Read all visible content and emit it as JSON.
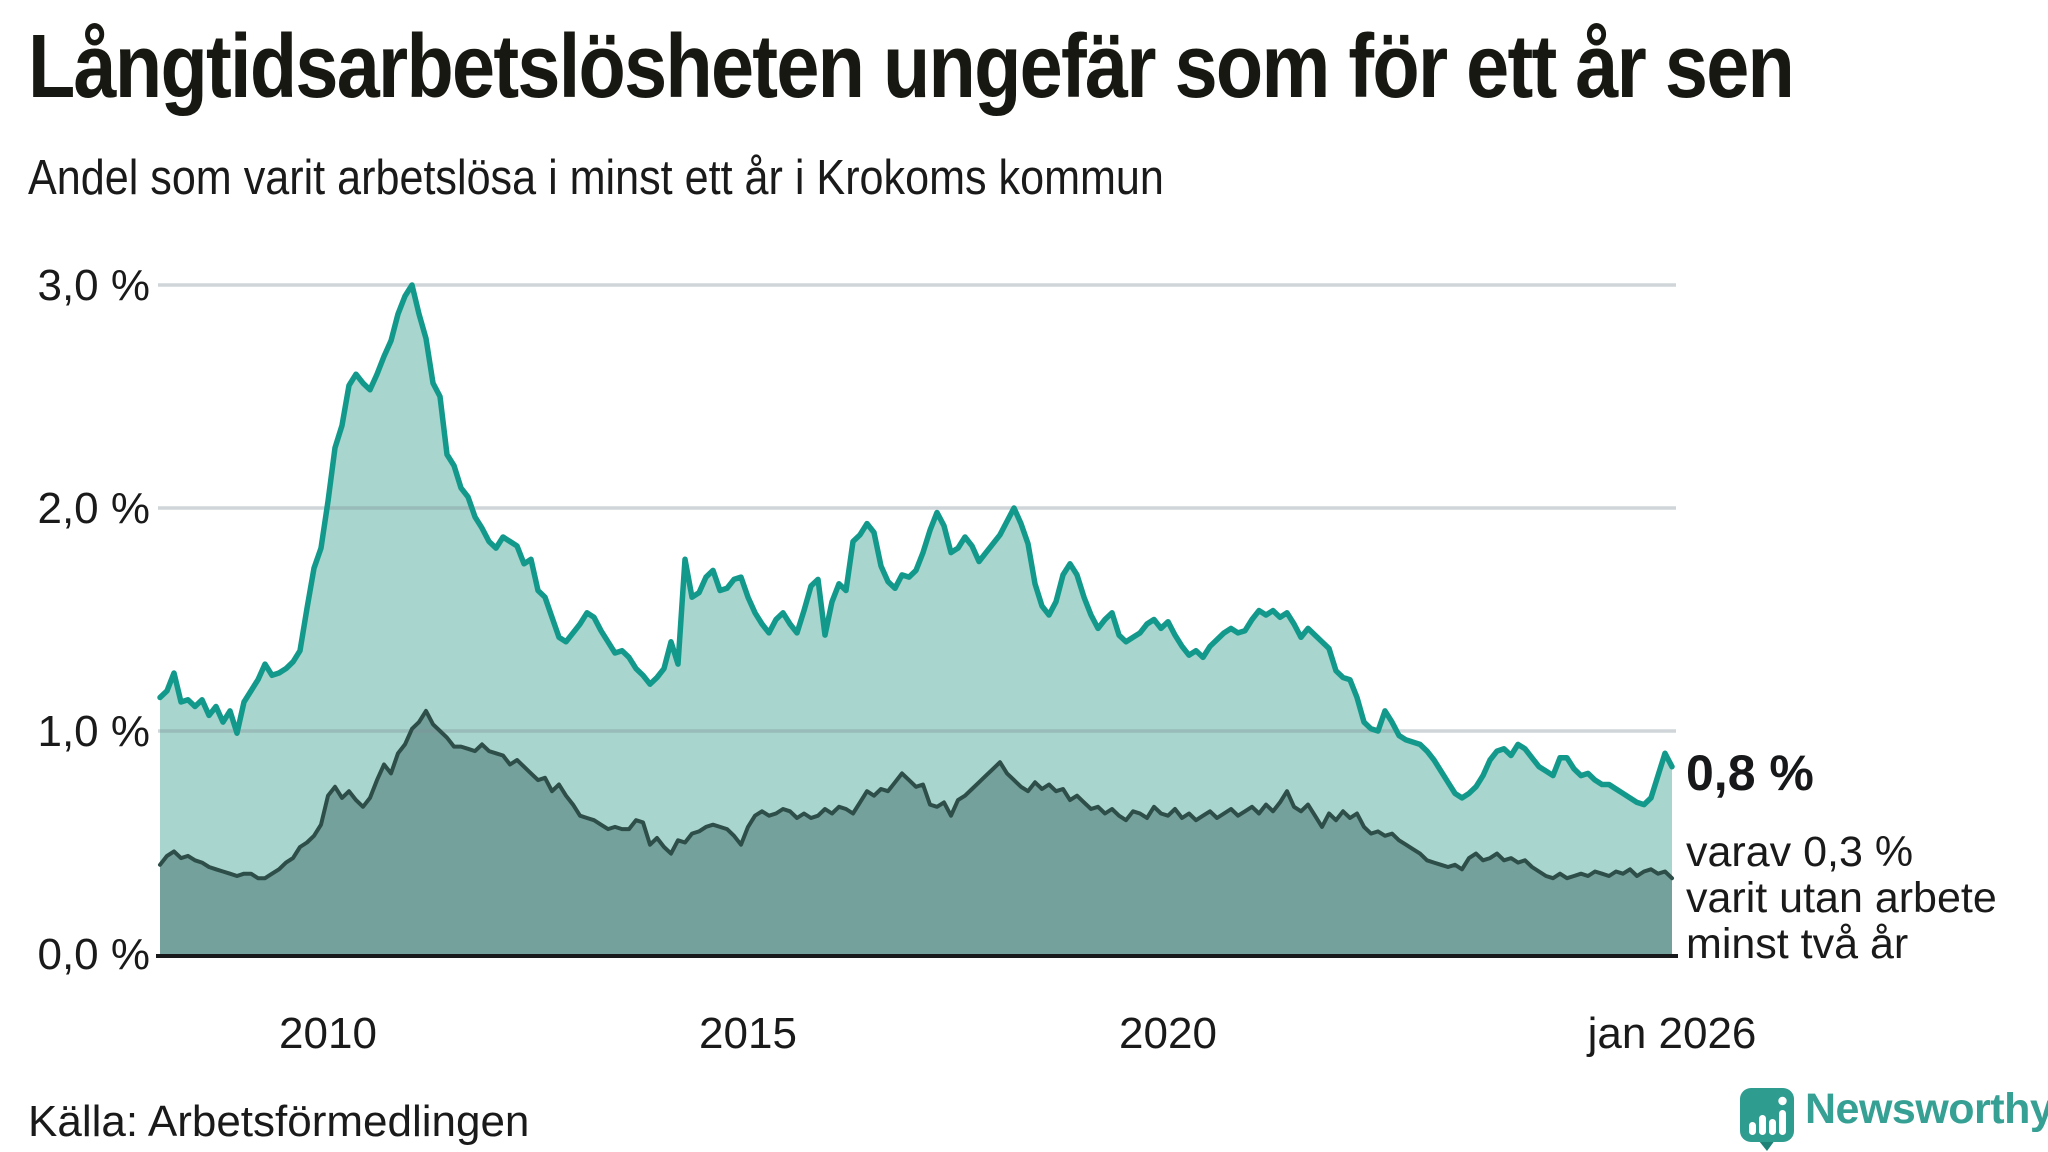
{
  "header": {
    "title": "Långtidsarbetslösheten ungefär som för ett år sen",
    "subtitle": "Andel som varit arbetslösa i minst ett år i Krokoms kommun"
  },
  "chart_data": {
    "type": "area",
    "title": "Långtidsarbetslösheten ungefär som för ett år sen",
    "subtitle": "Andel som varit arbetslösa i minst ett år i Krokoms kommun",
    "x_start_year": 2008,
    "x_end_year": 2026,
    "points_per_year": 12,
    "ylim": [
      0,
      3.2
    ],
    "grid": "horizontal",
    "y_axis": {
      "ticks": [
        {
          "label": "0,0 %",
          "value": 0
        },
        {
          "label": "1,0 %",
          "value": 1
        },
        {
          "label": "2,0 %",
          "value": 2
        },
        {
          "label": "3,0 %",
          "value": 3
        }
      ]
    },
    "x_axis": {
      "ticks": [
        {
          "label": "2010",
          "year": 2010
        },
        {
          "label": "2015",
          "year": 2015
        },
        {
          "label": "2020",
          "year": 2020
        },
        {
          "label": "jan 2026",
          "year": 2026
        }
      ]
    },
    "series": [
      {
        "id": "minst-ett-ar",
        "label": "arbetslösa i minst ett år",
        "line_color": "#13998b",
        "fill_color": "#a8d5cd",
        "line_width": 5.5,
        "values": [
          1.15,
          1.18,
          1.26,
          1.13,
          1.14,
          1.11,
          1.14,
          1.07,
          1.11,
          1.04,
          1.09,
          0.99,
          1.13,
          1.18,
          1.23,
          1.3,
          1.25,
          1.26,
          1.28,
          1.31,
          1.36,
          1.55,
          1.73,
          1.82,
          2.03,
          2.27,
          2.37,
          2.55,
          2.6,
          2.56,
          2.53,
          2.6,
          2.68,
          2.75,
          2.87,
          2.95,
          3.0,
          2.87,
          2.76,
          2.56,
          2.5,
          2.24,
          2.19,
          2.09,
          2.05,
          1.96,
          1.91,
          1.85,
          1.82,
          1.87,
          1.85,
          1.83,
          1.75,
          1.77,
          1.63,
          1.6,
          1.51,
          1.42,
          1.4,
          1.44,
          1.48,
          1.53,
          1.51,
          1.45,
          1.4,
          1.35,
          1.36,
          1.33,
          1.28,
          1.25,
          1.21,
          1.24,
          1.28,
          1.4,
          1.3,
          1.77,
          1.6,
          1.62,
          1.69,
          1.72,
          1.63,
          1.64,
          1.68,
          1.69,
          1.6,
          1.53,
          1.48,
          1.44,
          1.5,
          1.53,
          1.48,
          1.44,
          1.54,
          1.65,
          1.68,
          1.43,
          1.58,
          1.66,
          1.63,
          1.85,
          1.88,
          1.93,
          1.89,
          1.74,
          1.67,
          1.64,
          1.7,
          1.69,
          1.72,
          1.8,
          1.9,
          1.98,
          1.92,
          1.8,
          1.82,
          1.87,
          1.83,
          1.76,
          1.8,
          1.84,
          1.88,
          1.94,
          2.0,
          1.93,
          1.84,
          1.66,
          1.56,
          1.52,
          1.58,
          1.7,
          1.75,
          1.7,
          1.6,
          1.52,
          1.46,
          1.5,
          1.53,
          1.43,
          1.4,
          1.42,
          1.44,
          1.48,
          1.5,
          1.46,
          1.49,
          1.43,
          1.38,
          1.34,
          1.36,
          1.33,
          1.38,
          1.41,
          1.44,
          1.46,
          1.44,
          1.45,
          1.5,
          1.54,
          1.52,
          1.54,
          1.51,
          1.53,
          1.48,
          1.42,
          1.46,
          1.43,
          1.4,
          1.37,
          1.27,
          1.24,
          1.23,
          1.15,
          1.04,
          1.01,
          1.0,
          1.09,
          1.04,
          0.98,
          0.96,
          0.95,
          0.94,
          0.91,
          0.87,
          0.82,
          0.77,
          0.72,
          0.7,
          0.72,
          0.75,
          0.8,
          0.87,
          0.91,
          0.92,
          0.89,
          0.94,
          0.92,
          0.88,
          0.84,
          0.82,
          0.8,
          0.88,
          0.88,
          0.83,
          0.8,
          0.81,
          0.78,
          0.76,
          0.76,
          0.74,
          0.72,
          0.7,
          0.68,
          0.67,
          0.7,
          0.8,
          0.9,
          0.84
        ]
      },
      {
        "id": "minst-tva-ar",
        "label": "varit utan arbete minst två år",
        "line_color": "#2e4e4a",
        "fill_color": "#74a19b",
        "line_width": 4,
        "values": [
          0.4,
          0.44,
          0.46,
          0.43,
          0.44,
          0.42,
          0.41,
          0.39,
          0.38,
          0.37,
          0.36,
          0.35,
          0.36,
          0.36,
          0.34,
          0.34,
          0.36,
          0.38,
          0.41,
          0.43,
          0.48,
          0.5,
          0.53,
          0.58,
          0.71,
          0.75,
          0.7,
          0.73,
          0.69,
          0.66,
          0.7,
          0.78,
          0.85,
          0.81,
          0.9,
          0.94,
          1.01,
          1.04,
          1.09,
          1.03,
          1.0,
          0.97,
          0.93,
          0.93,
          0.92,
          0.91,
          0.94,
          0.91,
          0.9,
          0.89,
          0.85,
          0.87,
          0.84,
          0.81,
          0.78,
          0.79,
          0.73,
          0.76,
          0.71,
          0.67,
          0.62,
          0.61,
          0.6,
          0.58,
          0.56,
          0.57,
          0.56,
          0.56,
          0.6,
          0.59,
          0.49,
          0.52,
          0.48,
          0.45,
          0.51,
          0.5,
          0.54,
          0.55,
          0.57,
          0.58,
          0.57,
          0.56,
          0.53,
          0.49,
          0.57,
          0.62,
          0.64,
          0.62,
          0.63,
          0.65,
          0.64,
          0.61,
          0.63,
          0.61,
          0.62,
          0.65,
          0.63,
          0.66,
          0.65,
          0.63,
          0.68,
          0.73,
          0.71,
          0.74,
          0.73,
          0.77,
          0.81,
          0.78,
          0.75,
          0.76,
          0.67,
          0.66,
          0.68,
          0.62,
          0.69,
          0.71,
          0.74,
          0.77,
          0.8,
          0.83,
          0.86,
          0.81,
          0.78,
          0.75,
          0.73,
          0.77,
          0.74,
          0.76,
          0.73,
          0.74,
          0.69,
          0.71,
          0.68,
          0.65,
          0.66,
          0.63,
          0.65,
          0.62,
          0.6,
          0.64,
          0.63,
          0.61,
          0.66,
          0.63,
          0.62,
          0.65,
          0.61,
          0.63,
          0.6,
          0.62,
          0.64,
          0.61,
          0.63,
          0.65,
          0.62,
          0.64,
          0.66,
          0.63,
          0.67,
          0.64,
          0.68,
          0.73,
          0.66,
          0.64,
          0.67,
          0.62,
          0.57,
          0.63,
          0.6,
          0.64,
          0.61,
          0.63,
          0.57,
          0.54,
          0.55,
          0.53,
          0.54,
          0.51,
          0.49,
          0.47,
          0.45,
          0.42,
          0.41,
          0.4,
          0.39,
          0.4,
          0.38,
          0.43,
          0.45,
          0.42,
          0.43,
          0.45,
          0.42,
          0.43,
          0.41,
          0.42,
          0.39,
          0.37,
          0.35,
          0.34,
          0.36,
          0.34,
          0.35,
          0.36,
          0.35,
          0.37,
          0.36,
          0.35,
          0.37,
          0.36,
          0.38,
          0.35,
          0.37,
          0.38,
          0.36,
          0.37,
          0.34
        ]
      }
    ],
    "annotations": {
      "end_value": "0,8 %",
      "sub_lines": [
        "varav 0,3 %",
        "varit utan arbete",
        "minst två år"
      ]
    },
    "colors": {
      "grid": "#d9dde0",
      "axis": "#17191b",
      "text": "#1a1a1a"
    }
  },
  "footer": {
    "source": "Källa: Arbetsförmedlingen",
    "logo_text": "Newsworthy",
    "logo_color": "#2f9c90"
  }
}
